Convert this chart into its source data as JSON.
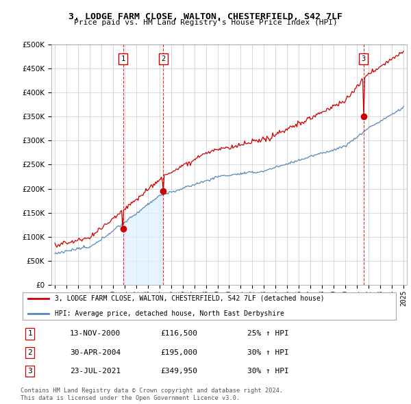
{
  "title": "3, LODGE FARM CLOSE, WALTON, CHESTERFIELD, S42 7LF",
  "subtitle": "Price paid vs. HM Land Registry's House Price Index (HPI)",
  "legend_line1": "3, LODGE FARM CLOSE, WALTON, CHESTERFIELD, S42 7LF (detached house)",
  "legend_line2": "HPI: Average price, detached house, North East Derbyshire",
  "transactions": [
    {
      "num": 1,
      "date": "13-NOV-2000",
      "price": "£116,500",
      "hpi": "25% ↑ HPI",
      "year": 2000.87,
      "value": 116500
    },
    {
      "num": 2,
      "date": "30-APR-2004",
      "price": "£195,000",
      "hpi": "30% ↑ HPI",
      "year": 2004.33,
      "value": 195000
    },
    {
      "num": 3,
      "date": "23-JUL-2021",
      "price": "£349,950",
      "hpi": "30% ↑ HPI",
      "year": 2021.56,
      "value": 349950
    }
  ],
  "footer1": "Contains HM Land Registry data © Crown copyright and database right 2024.",
  "footer2": "This data is licensed under the Open Government Licence v3.0.",
  "red_color": "#cc0000",
  "blue_color": "#5588bb",
  "blue_fill": "#ddeeff",
  "ylim": [
    0,
    500000
  ],
  "yticks": [
    0,
    50000,
    100000,
    150000,
    200000,
    250000,
    300000,
    350000,
    400000,
    450000,
    500000
  ],
  "xmin": 1994.7,
  "xmax": 2025.3
}
